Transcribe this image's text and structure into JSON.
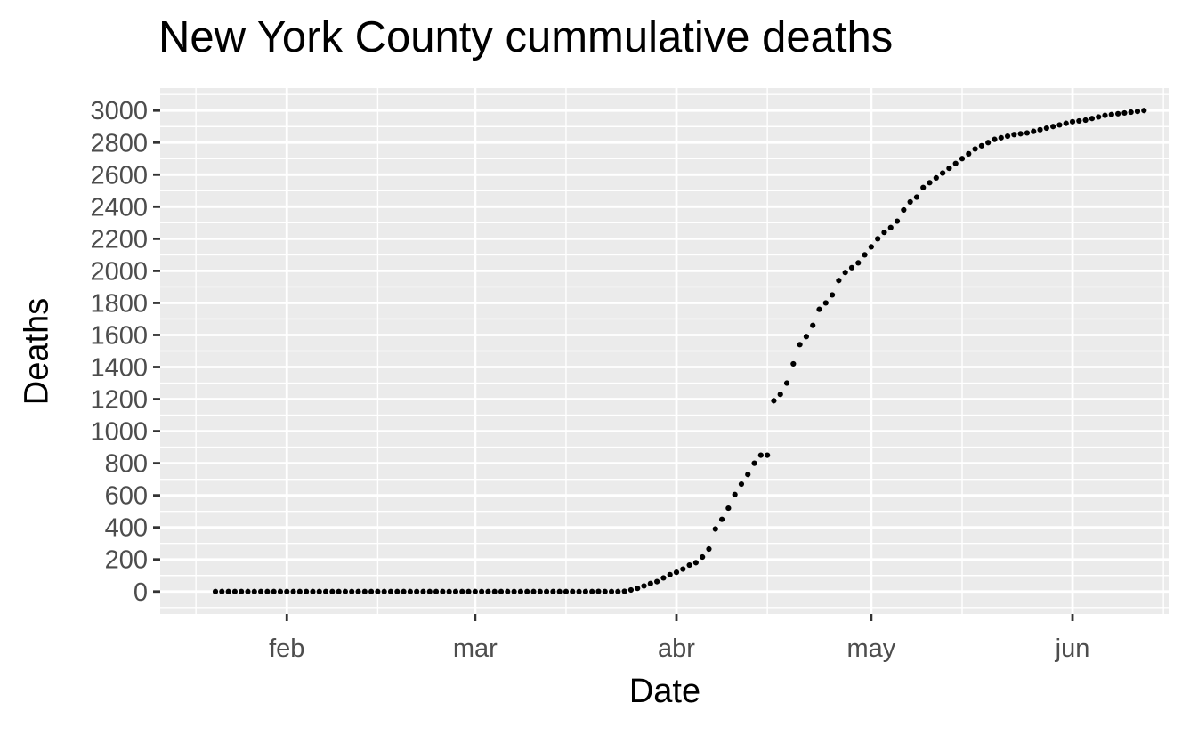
{
  "chart_data": {
    "type": "scatter",
    "title": "New York County cummulative deaths",
    "xlabel": "Date",
    "ylabel": "Deaths",
    "year": 2020,
    "x_range": [
      "2020-01-21",
      "2020-06-16"
    ],
    "ylim": [
      -140,
      3140
    ],
    "grid": true,
    "background": "#ebebeb",
    "point_color": "#000000",
    "x_ticks": [
      {
        "date": "2020-02-01",
        "label": "feb"
      },
      {
        "date": "2020-03-01",
        "label": "mar"
      },
      {
        "date": "2020-04-01",
        "label": "abr"
      },
      {
        "date": "2020-05-01",
        "label": "may"
      },
      {
        "date": "2020-06-01",
        "label": "jun"
      }
    ],
    "x_minor_ticks": [
      "2020-01-18",
      "2020-02-15",
      "2020-03-15",
      "2020-04-15",
      "2020-05-15",
      "2020-06-15"
    ],
    "y_ticks": [
      0,
      200,
      400,
      600,
      800,
      1000,
      1200,
      1400,
      1600,
      1800,
      2000,
      2200,
      2400,
      2600,
      2800,
      3000
    ],
    "series": [
      {
        "x_start": "2020-01-21",
        "values": [
          0,
          0,
          0,
          0,
          0,
          0,
          0,
          0,
          0,
          0,
          0,
          0,
          0,
          0,
          0,
          0,
          0,
          0,
          0,
          0,
          0,
          0,
          0,
          0,
          0,
          0,
          0,
          0,
          0,
          0,
          0,
          0,
          0,
          0,
          0,
          0,
          0,
          0,
          0,
          0,
          0,
          0,
          0,
          0,
          0,
          0,
          0,
          0,
          0,
          0,
          0,
          0,
          0,
          0,
          0,
          0,
          0,
          0,
          0,
          0,
          0,
          0,
          0,
          0,
          0,
          0,
          0,
          0,
          0,
          0,
          0,
          0,
          0,
          0,
          0,
          0,
          0,
          0,
          0,
          0,
          0,
          0,
          0,
          0,
          0,
          0,
          0,
          0,
          0,
          0,
          0,
          0,
          0,
          0,
          0,
          0,
          0,
          0,
          0,
          0,
          0,
          0,
          0,
          0,
          0,
          0,
          0,
          0,
          0,
          0,
          0,
          0,
          0,
          0,
          0,
          0,
          0,
          0,
          0,
          0,
          0,
          0,
          0,
          0,
          0,
          0,
          0,
          0,
          0,
          0,
          0,
          0,
          0,
          0,
          0,
          0,
          0,
          0,
          0,
          0,
          0,
          0,
          0,
          0,
          0,
          0
        ]
      }
    ],
    "points": [
      [
        "2020-01-21",
        0
      ],
      [
        "2020-01-22",
        0
      ],
      [
        "2020-01-23",
        0
      ],
      [
        "2020-01-24",
        0
      ],
      [
        "2020-01-25",
        0
      ],
      [
        "2020-01-26",
        0
      ],
      [
        "2020-01-27",
        0
      ],
      [
        "2020-01-28",
        0
      ],
      [
        "2020-01-29",
        0
      ],
      [
        "2020-01-30",
        0
      ],
      [
        "2020-01-31",
        0
      ],
      [
        "2020-02-01",
        0
      ],
      [
        "2020-02-02",
        0
      ],
      [
        "2020-02-03",
        0
      ],
      [
        "2020-02-04",
        0
      ],
      [
        "2020-02-05",
        0
      ],
      [
        "2020-02-06",
        0
      ],
      [
        "2020-02-07",
        0
      ],
      [
        "2020-02-08",
        0
      ],
      [
        "2020-02-09",
        0
      ],
      [
        "2020-02-10",
        0
      ],
      [
        "2020-02-11",
        0
      ],
      [
        "2020-02-12",
        0
      ],
      [
        "2020-02-13",
        0
      ],
      [
        "2020-02-14",
        0
      ],
      [
        "2020-02-15",
        0
      ],
      [
        "2020-02-16",
        0
      ],
      [
        "2020-02-17",
        0
      ],
      [
        "2020-02-18",
        0
      ],
      [
        "2020-02-19",
        0
      ],
      [
        "2020-02-20",
        0
      ],
      [
        "2020-02-21",
        0
      ],
      [
        "2020-02-22",
        0
      ],
      [
        "2020-02-23",
        0
      ],
      [
        "2020-02-24",
        0
      ],
      [
        "2020-02-25",
        0
      ],
      [
        "2020-02-26",
        0
      ],
      [
        "2020-02-27",
        0
      ],
      [
        "2020-02-28",
        0
      ],
      [
        "2020-02-29",
        0
      ],
      [
        "2020-03-01",
        0
      ],
      [
        "2020-03-02",
        0
      ],
      [
        "2020-03-03",
        0
      ],
      [
        "2020-03-04",
        0
      ],
      [
        "2020-03-05",
        0
      ],
      [
        "2020-03-06",
        0
      ],
      [
        "2020-03-07",
        0
      ],
      [
        "2020-03-08",
        0
      ],
      [
        "2020-03-09",
        0
      ],
      [
        "2020-03-10",
        0
      ],
      [
        "2020-03-11",
        0
      ],
      [
        "2020-03-12",
        0
      ],
      [
        "2020-03-13",
        0
      ],
      [
        "2020-03-14",
        0
      ],
      [
        "2020-03-15",
        0
      ],
      [
        "2020-03-16",
        0
      ],
      [
        "2020-03-17",
        0
      ],
      [
        "2020-03-18",
        0
      ],
      [
        "2020-03-19",
        0
      ],
      [
        "2020-03-20",
        1
      ],
      [
        "2020-03-21",
        0
      ],
      [
        "2020-03-22",
        0
      ],
      [
        "2020-03-23",
        0
      ],
      [
        "2020-03-24",
        2
      ],
      [
        "2020-03-25",
        10
      ],
      [
        "2020-03-26",
        20
      ],
      [
        "2020-03-27",
        35
      ],
      [
        "2020-03-28",
        50
      ],
      [
        "2020-03-29",
        62
      ],
      [
        "2020-03-30",
        85
      ],
      [
        "2020-03-31",
        105
      ],
      [
        "2020-04-01",
        120
      ],
      [
        "2020-04-02",
        140
      ],
      [
        "2020-04-03",
        165
      ],
      [
        "2020-04-04",
        180
      ],
      [
        "2020-04-05",
        215
      ],
      [
        "2020-04-06",
        265
      ],
      [
        "2020-04-07",
        390
      ],
      [
        "2020-04-08",
        450
      ],
      [
        "2020-04-09",
        520
      ],
      [
        "2020-04-10",
        605
      ],
      [
        "2020-04-11",
        670
      ],
      [
        "2020-04-12",
        730
      ],
      [
        "2020-04-13",
        800
      ],
      [
        "2020-04-14",
        850
      ],
      [
        "2020-04-15",
        850
      ],
      [
        "2020-04-16",
        1190
      ],
      [
        "2020-04-17",
        1230
      ],
      [
        "2020-04-18",
        1300
      ],
      [
        "2020-04-19",
        1420
      ],
      [
        "2020-04-20",
        1540
      ],
      [
        "2020-04-21",
        1590
      ],
      [
        "2020-04-22",
        1660
      ],
      [
        "2020-04-23",
        1760
      ],
      [
        "2020-04-24",
        1800
      ],
      [
        "2020-04-25",
        1850
      ],
      [
        "2020-04-26",
        1940
      ],
      [
        "2020-04-27",
        1990
      ],
      [
        "2020-04-28",
        2020
      ],
      [
        "2020-04-29",
        2050
      ],
      [
        "2020-04-30",
        2100
      ],
      [
        "2020-05-01",
        2150
      ],
      [
        "2020-05-02",
        2200
      ],
      [
        "2020-05-03",
        2240
      ],
      [
        "2020-05-04",
        2270
      ],
      [
        "2020-05-05",
        2310
      ],
      [
        "2020-05-06",
        2380
      ],
      [
        "2020-05-07",
        2430
      ],
      [
        "2020-05-08",
        2460
      ],
      [
        "2020-05-09",
        2520
      ],
      [
        "2020-05-10",
        2550
      ],
      [
        "2020-05-11",
        2580
      ],
      [
        "2020-05-12",
        2610
      ],
      [
        "2020-05-13",
        2640
      ],
      [
        "2020-05-14",
        2670
      ],
      [
        "2020-05-15",
        2700
      ],
      [
        "2020-05-16",
        2730
      ],
      [
        "2020-05-17",
        2760
      ],
      [
        "2020-05-18",
        2780
      ],
      [
        "2020-05-19",
        2800
      ],
      [
        "2020-05-20",
        2820
      ],
      [
        "2020-05-21",
        2830
      ],
      [
        "2020-05-22",
        2840
      ],
      [
        "2020-05-23",
        2850
      ],
      [
        "2020-05-24",
        2855
      ],
      [
        "2020-05-25",
        2860
      ],
      [
        "2020-05-26",
        2870
      ],
      [
        "2020-05-27",
        2880
      ],
      [
        "2020-05-28",
        2890
      ],
      [
        "2020-05-29",
        2900
      ],
      [
        "2020-05-30",
        2910
      ],
      [
        "2020-05-31",
        2920
      ],
      [
        "2020-06-01",
        2930
      ],
      [
        "2020-06-02",
        2935
      ],
      [
        "2020-06-03",
        2940
      ],
      [
        "2020-06-04",
        2950
      ],
      [
        "2020-06-05",
        2960
      ],
      [
        "2020-06-06",
        2970
      ],
      [
        "2020-06-07",
        2975
      ],
      [
        "2020-06-08",
        2980
      ],
      [
        "2020-06-09",
        2985
      ],
      [
        "2020-06-10",
        2990
      ],
      [
        "2020-06-11",
        2995
      ],
      [
        "2020-06-12",
        3000
      ]
    ]
  }
}
